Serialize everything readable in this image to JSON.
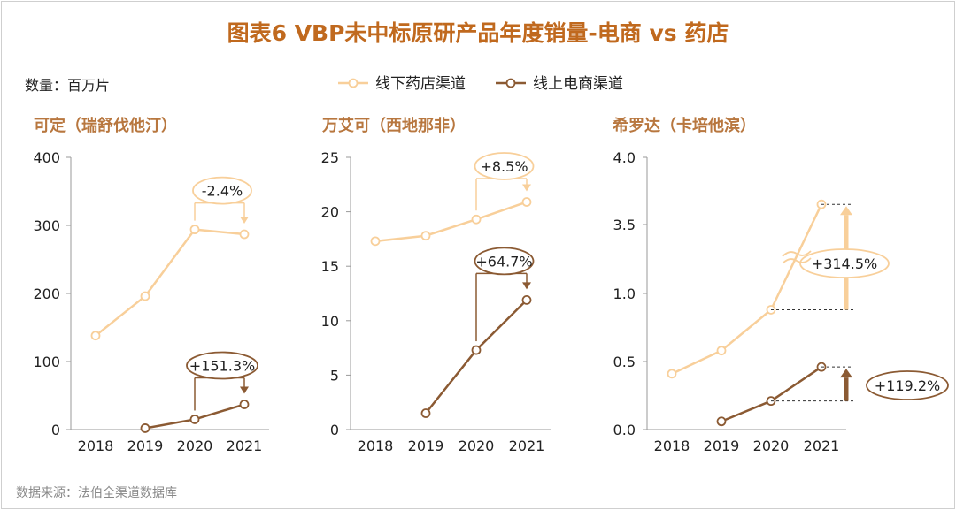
{
  "title": "图表6 VBP未中标原研产品年度销量-电商 vs 药店",
  "unit_label": "数量：百万片",
  "source": "数据来源：法伯全渠道数据库",
  "colors": {
    "title": "#C0691E",
    "offline": "#F8CF9A",
    "online": "#8B5A33",
    "axis": "#9a9a9a",
    "text": "#222222",
    "subtitle": "#B8773F"
  },
  "legend": [
    {
      "key": "offline",
      "label": "线下药店渠道"
    },
    {
      "key": "online",
      "label": "线上电商渠道"
    }
  ],
  "chart_data": [
    {
      "type": "line",
      "title": "可定（瑞舒伐他汀）",
      "categories": [
        "2018",
        "2019",
        "2020",
        "2021"
      ],
      "ylim": [
        0,
        400
      ],
      "yticks": [
        "0",
        "100",
        "200",
        "300",
        "400"
      ],
      "series": [
        {
          "name": "线下药店渠道",
          "key": "offline",
          "values": [
            138,
            196,
            294,
            287
          ]
        },
        {
          "name": "线上电商渠道",
          "key": "online",
          "values": [
            null,
            2,
            15,
            37
          ]
        }
      ],
      "annotations": [
        {
          "series": "offline",
          "text": "-2.4%"
        },
        {
          "series": "online",
          "text": "+151.3%"
        }
      ]
    },
    {
      "type": "line",
      "title": "万艾可（西地那非）",
      "categories": [
        "2018",
        "2019",
        "2020",
        "2021"
      ],
      "ylim": [
        0,
        25
      ],
      "yticks": [
        "0",
        "5",
        "10",
        "15",
        "20",
        "25"
      ],
      "series": [
        {
          "name": "线下药店渠道",
          "key": "offline",
          "values": [
            17.3,
            17.8,
            19.3,
            20.9
          ]
        },
        {
          "name": "线上电商渠道",
          "key": "online",
          "values": [
            null,
            1.5,
            7.3,
            11.9
          ]
        }
      ],
      "annotations": [
        {
          "series": "offline",
          "text": "+8.5%"
        },
        {
          "series": "online",
          "text": "+64.7%"
        }
      ]
    },
    {
      "type": "line",
      "title": "希罗达（卡培他滨）",
      "categories": [
        "2018",
        "2019",
        "2020",
        "2021"
      ],
      "yticks": [
        "0.0",
        "0.5",
        "1.0",
        "3.5",
        "4.0"
      ],
      "axis_break": true,
      "series": [
        {
          "name": "线下药店渠道",
          "key": "offline",
          "values": [
            0.41,
            0.58,
            0.88,
            3.65
          ]
        },
        {
          "name": "线上电商渠道",
          "key": "online",
          "values": [
            null,
            0.06,
            0.21,
            0.46
          ]
        }
      ],
      "annotations": [
        {
          "series": "offline",
          "text": "+314.5%"
        },
        {
          "series": "online",
          "text": "+119.2%"
        }
      ]
    }
  ]
}
